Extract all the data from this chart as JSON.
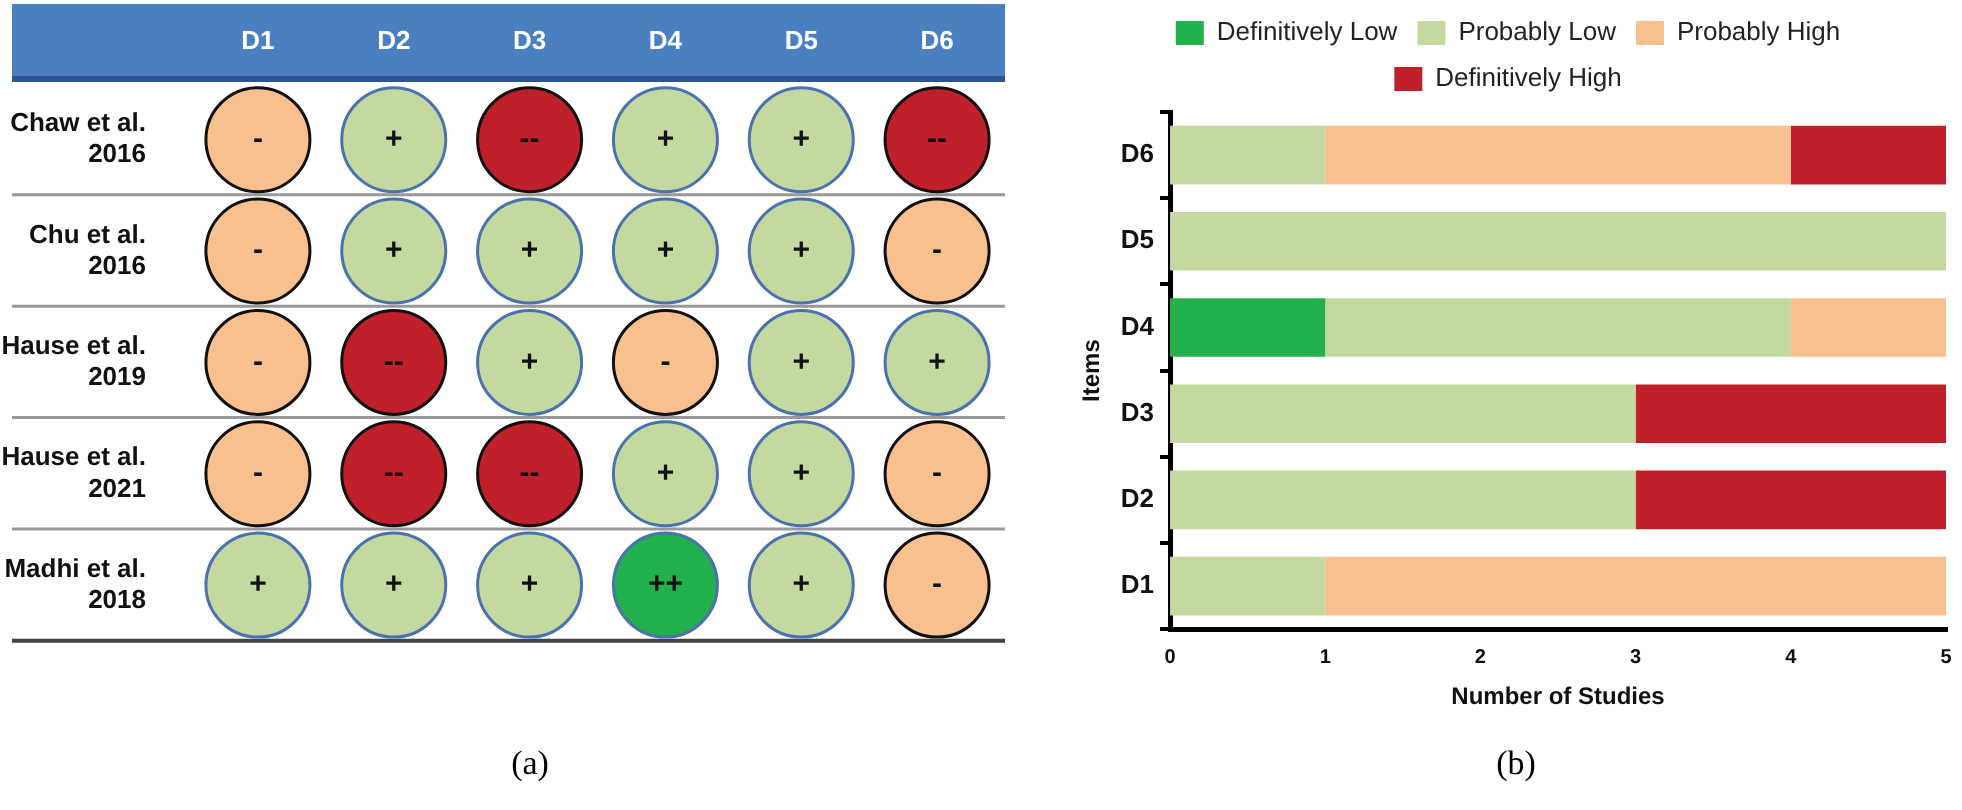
{
  "chart_data": [
    {
      "type": "other",
      "categories": [
        "D1",
        "D2",
        "D3",
        "D4",
        "D5",
        "D6"
      ],
      "y_categories": [
        "Chaw et al. 2016",
        "Chu et al. 2016",
        "Hause et al. 2019",
        "Hause et al. 2021",
        "Madhi et al. 2018"
      ],
      "colors": [
        [
          "#f8c08f",
          "#c4d9a0",
          "#c0202a",
          "#c4d9a0",
          "#c4d9a0",
          "#c0202a"
        ],
        [
          "#f8c08f",
          "#c4d9a0",
          "#c4d9a0",
          "#c4d9a0",
          "#c4d9a0",
          "#f8c08f"
        ],
        [
          "#f8c08f",
          "#c0202a",
          "#c4d9a0",
          "#f8c08f",
          "#c4d9a0",
          "#c4d9a0"
        ],
        [
          "#f8c08f",
          "#c0202a",
          "#c0202a",
          "#c4d9a0",
          "#c4d9a0",
          "#f8c08f"
        ],
        [
          "#c4d9a0",
          "#c4d9a0",
          "#c4d9a0",
          "#22b14c",
          "#c4d9a0",
          "#f8c08f"
        ]
      ],
      "cell_labels": [
        [
          "-",
          "+",
          "--",
          "+",
          "+",
          "--"
        ],
        [
          "-",
          "+",
          "+",
          "+",
          "+",
          "-"
        ],
        [
          "-",
          "--",
          "+",
          "-",
          "+",
          "+"
        ],
        [
          "-",
          "--",
          "--",
          "+",
          "+",
          "-"
        ],
        [
          "+",
          "+",
          "+",
          "++",
          "+",
          "-"
        ]
      ],
      "annotations": [
        "(a)"
      ]
    },
    {
      "type": "bar",
      "orientation": "horizontal",
      "stacked": true,
      "categories": [
        "D6",
        "D5",
        "D4",
        "D3",
        "D2",
        "D1"
      ],
      "series": [
        {
          "name": "Definitively Low",
          "color": "#22b14c",
          "values": [
            0,
            0,
            1,
            0,
            0,
            0
          ]
        },
        {
          "name": "Probably Low",
          "color": "#c4d9a0",
          "values": [
            1,
            5,
            3,
            3,
            3,
            1
          ]
        },
        {
          "name": "Probably High",
          "color": "#f8c08f",
          "values": [
            3,
            0,
            1,
            0,
            0,
            4
          ]
        },
        {
          "name": "Definitively High",
          "color": "#c0202a",
          "values": [
            1,
            0,
            0,
            2,
            2,
            0
          ]
        }
      ],
      "xlim": [
        0,
        5
      ],
      "xticks": [
        0,
        1,
        2,
        3,
        4,
        5
      ],
      "xlabel": "Number of Studies",
      "ylabel": "Items",
      "grid": false,
      "legend": "top",
      "annotations": [
        "(b)"
      ]
    }
  ]
}
